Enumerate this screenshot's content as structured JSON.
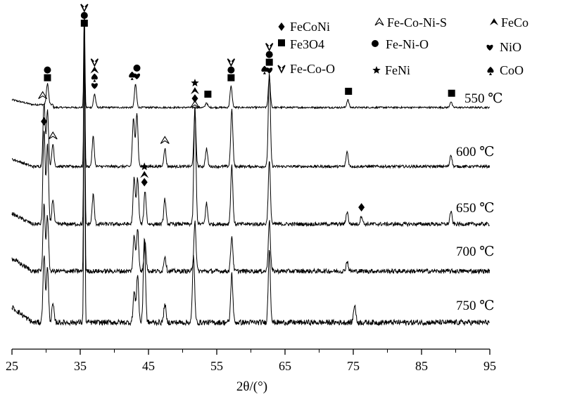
{
  "chart_data": {
    "type": "line",
    "title": "",
    "xlabel": "2θ/(°)",
    "ylabel": "",
    "xlim": [
      25,
      95
    ],
    "x_ticks": [
      "25",
      "35",
      "45",
      "55",
      "65",
      "75",
      "85",
      "95"
    ],
    "grid": false,
    "legend_placement": "top-right",
    "series": [
      {
        "name": "550 ℃",
        "peaks": [
          [
            30.2,
            0.22
          ],
          [
            35.6,
            1.0
          ],
          [
            37.1,
            0.14
          ],
          [
            43.1,
            0.24
          ],
          [
            53.5,
            0.05
          ],
          [
            57.1,
            0.22
          ],
          [
            62.7,
            0.3
          ],
          [
            74.2,
            0.08
          ],
          [
            89.3,
            0.06
          ]
        ]
      },
      {
        "name": "600 ℃",
        "peaks": [
          [
            29.7,
            0.42
          ],
          [
            30.2,
            0.38
          ],
          [
            31.0,
            0.15
          ],
          [
            35.6,
            1.0
          ],
          [
            36.9,
            0.2
          ],
          [
            42.8,
            0.32
          ],
          [
            43.3,
            0.36
          ],
          [
            47.4,
            0.12
          ],
          [
            51.8,
            0.36
          ],
          [
            53.5,
            0.12
          ],
          [
            57.2,
            0.38
          ],
          [
            62.7,
            0.62
          ],
          [
            74.1,
            0.1
          ],
          [
            89.3,
            0.08
          ]
        ]
      },
      {
        "name": "650 ℃",
        "peaks": [
          [
            29.7,
            0.45
          ],
          [
            30.2,
            0.38
          ],
          [
            31.0,
            0.12
          ],
          [
            35.6,
            1.0
          ],
          [
            36.9,
            0.14
          ],
          [
            42.9,
            0.22
          ],
          [
            43.4,
            0.22
          ],
          [
            44.5,
            0.16
          ],
          [
            47.4,
            0.12
          ],
          [
            51.8,
            0.56
          ],
          [
            53.5,
            0.1
          ],
          [
            57.2,
            0.28
          ],
          [
            62.7,
            0.3
          ],
          [
            74.1,
            0.06
          ],
          [
            76.2,
            0.04
          ],
          [
            89.3,
            0.06
          ]
        ]
      },
      {
        "name": "700 ℃",
        "peaks": [
          [
            29.7,
            0.26
          ],
          [
            30.2,
            0.22
          ],
          [
            35.6,
            1.0
          ],
          [
            42.9,
            0.14
          ],
          [
            43.4,
            0.17
          ],
          [
            44.5,
            0.12
          ],
          [
            47.4,
            0.06
          ],
          [
            51.8,
            0.2
          ],
          [
            57.2,
            0.14
          ],
          [
            62.7,
            0.2
          ],
          [
            74.1,
            0.04
          ]
        ]
      },
      {
        "name": "750 ℃",
        "peaks": [
          [
            29.7,
            0.22
          ],
          [
            30.2,
            0.18
          ],
          [
            31.0,
            0.06
          ],
          [
            35.6,
            1.0
          ],
          [
            42.9,
            0.1
          ],
          [
            43.4,
            0.16
          ],
          [
            44.4,
            0.28
          ],
          [
            47.4,
            0.06
          ],
          [
            51.6,
            0.22
          ],
          [
            57.2,
            0.16
          ],
          [
            62.7,
            0.24
          ],
          [
            75.2,
            0.06
          ]
        ]
      }
    ],
    "legend": [
      {
        "name": "FeCoNi",
        "symbol": "diamond"
      },
      {
        "name": "Fe-Co-Ni-S",
        "symbol": "open-chevron"
      },
      {
        "name": "FeCo",
        "symbol": "solid-chevron"
      },
      {
        "name": "Fe3O4",
        "symbol": "square"
      },
      {
        "name": "Fe-Ni-O",
        "symbol": "circle"
      },
      {
        "name": "NiO",
        "symbol": "heart"
      },
      {
        "name": "Fe-Co-O",
        "symbol": "v-shape"
      },
      {
        "name": "FeNi",
        "symbol": "star"
      },
      {
        "name": "CoO",
        "symbol": "spade"
      }
    ],
    "annotations": [
      {
        "series": "550 ℃",
        "x": 30.2,
        "symbols": [
          "circle",
          "square"
        ]
      },
      {
        "series": "550 ℃",
        "x": 35.6,
        "symbols": [
          "v-shape",
          "circle",
          "square"
        ]
      },
      {
        "series": "550 ℃",
        "x": 37.1,
        "symbols": [
          "v-shape",
          "solid-chevron",
          "spade",
          "heart"
        ]
      },
      {
        "series": "550 ℃",
        "x": 42.6,
        "symbols": [
          "spade"
        ]
      },
      {
        "series": "550 ℃",
        "x": 43.3,
        "symbols": [
          "circle",
          "heart"
        ]
      },
      {
        "series": "550 ℃",
        "x": 53.7,
        "symbols": [
          "square"
        ]
      },
      {
        "series": "550 ℃",
        "x": 57.1,
        "symbols": [
          "v-shape",
          "circle",
          "square"
        ]
      },
      {
        "series": "550 ℃",
        "x": 62.0,
        "symbols": [
          "spade"
        ]
      },
      {
        "series": "550 ℃",
        "x": 62.7,
        "symbols": [
          "v-shape",
          "circle",
          "square",
          "heart"
        ]
      },
      {
        "series": "550 ℃",
        "x": 74.3,
        "symbols": [
          "square"
        ]
      },
      {
        "series": "550 ℃",
        "x": 89.4,
        "symbols": [
          "square"
        ]
      },
      {
        "series": "600 ℃",
        "x": 29.5,
        "symbols": [
          "open-chevron"
        ]
      },
      {
        "series": "600 ℃",
        "x": 31.0,
        "symbols": [
          "open-chevron"
        ]
      },
      {
        "series": "600 ℃",
        "x": 47.4,
        "symbols": [
          "open-chevron"
        ]
      },
      {
        "series": "600 ℃",
        "x": 51.8,
        "symbols": [
          "open-chevron"
        ]
      },
      {
        "series": "650 ℃",
        "x": 29.7,
        "symbols": [
          "diamond"
        ]
      },
      {
        "series": "650 ℃",
        "x": 44.4,
        "symbols": [
          "star",
          "solid-chevron",
          "diamond"
        ]
      },
      {
        "series": "650 ℃",
        "x": 51.8,
        "symbols": [
          "star",
          "solid-chevron",
          "diamond"
        ]
      },
      {
        "series": "650 ℃",
        "x": 76.2,
        "symbols": [
          "diamond"
        ]
      }
    ]
  }
}
